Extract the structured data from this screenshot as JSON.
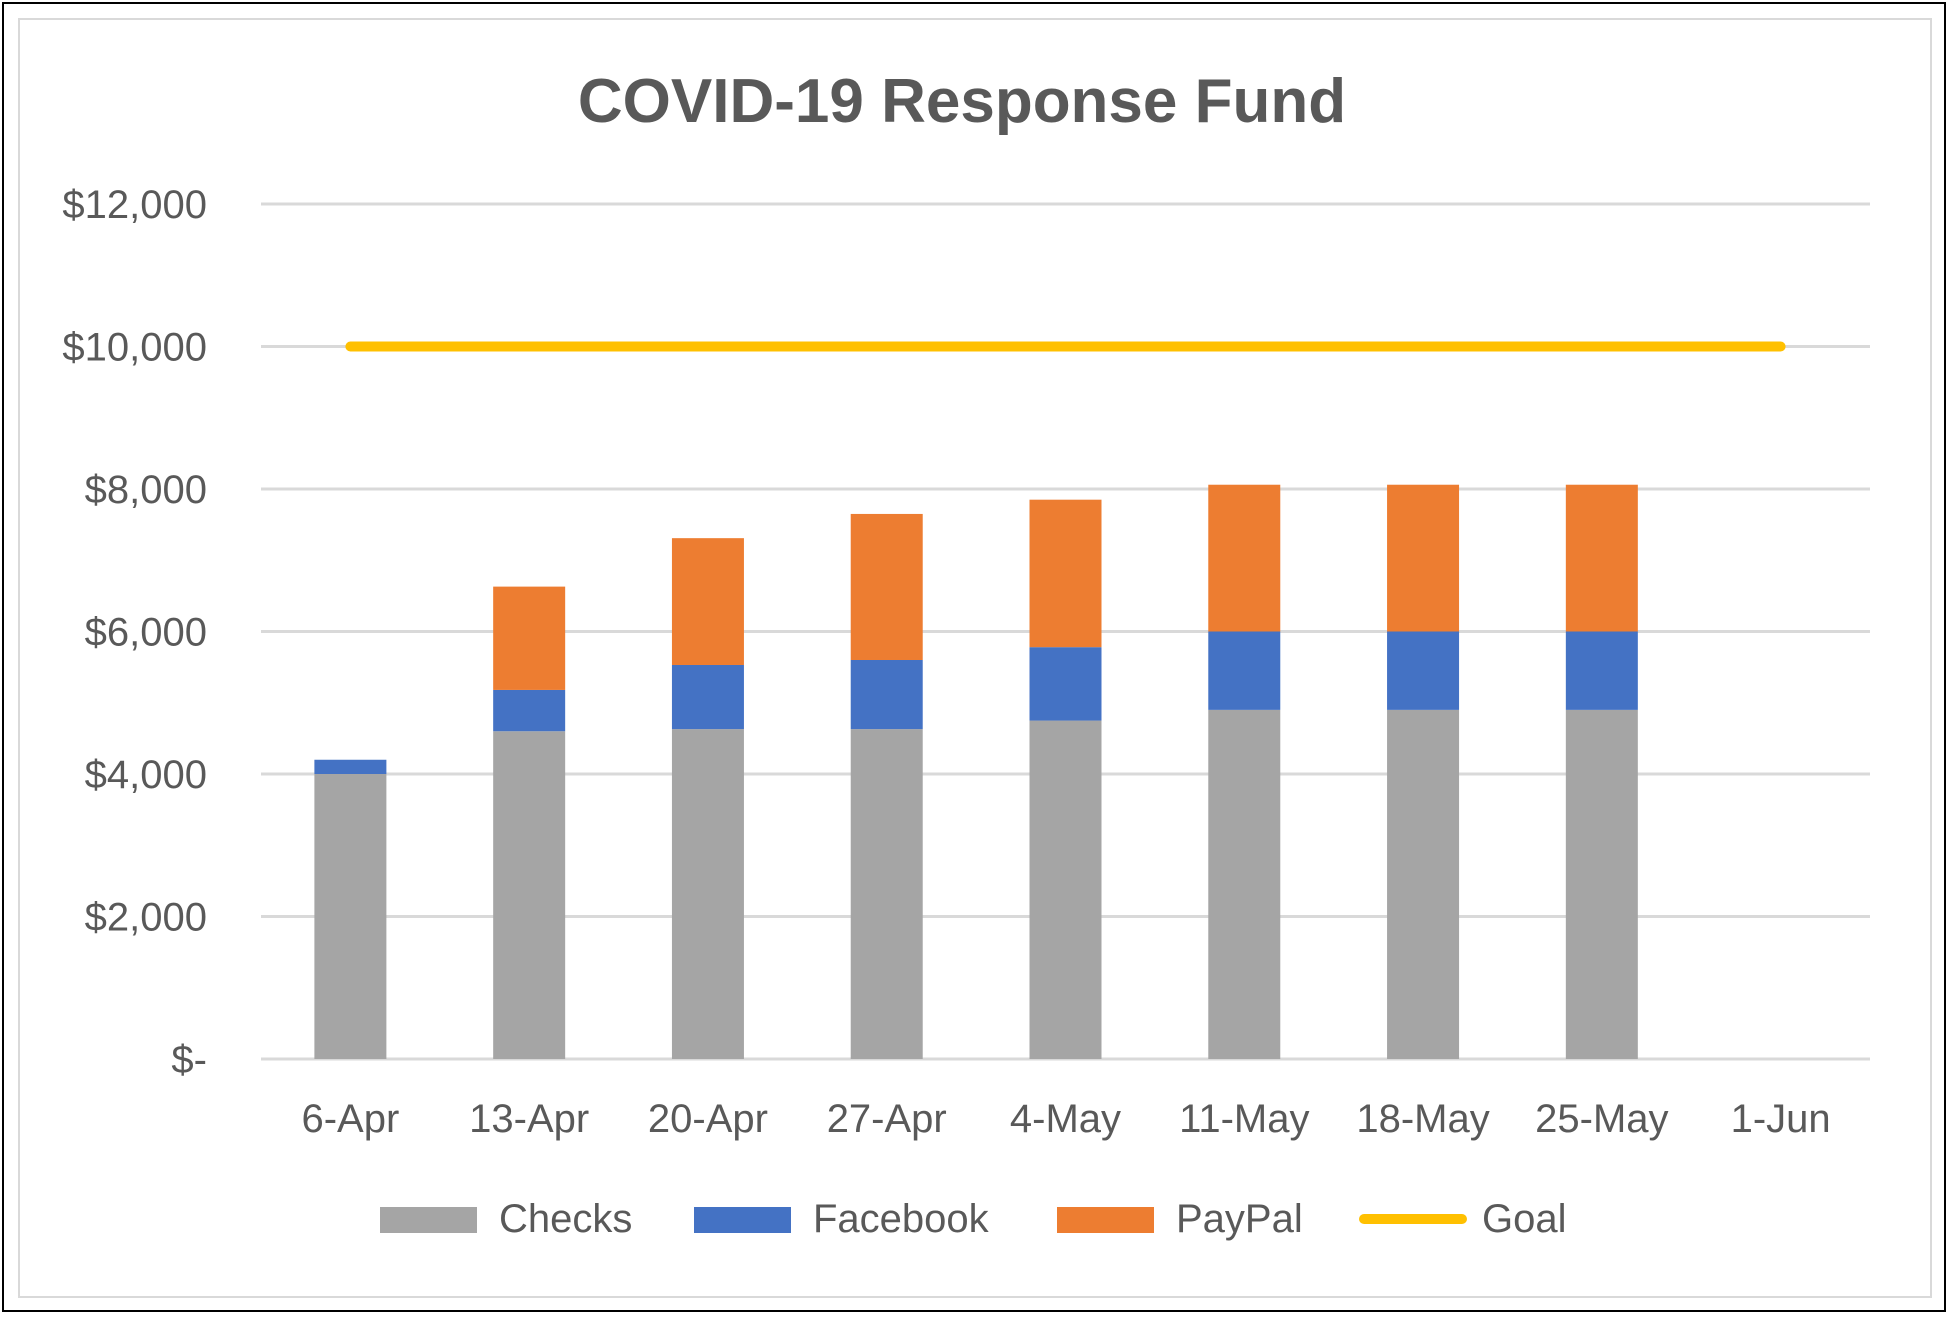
{
  "chart_data": {
    "type": "bar",
    "stacked": true,
    "title": "COVID-19 Response Fund",
    "xlabel": "",
    "ylabel": "",
    "categories": [
      "6-Apr",
      "13-Apr",
      "20-Apr",
      "27-Apr",
      "4-May",
      "11-May",
      "18-May",
      "25-May",
      "1-Jun"
    ],
    "series": [
      {
        "name": "Checks",
        "color": "#a5a5a5",
        "values": [
          4000,
          4600,
          4630,
          4630,
          4750,
          4900,
          4900,
          4900,
          null
        ]
      },
      {
        "name": "Facebook",
        "color": "#4472c4",
        "values": [
          200,
          580,
          900,
          970,
          1030,
          1100,
          1100,
          1100,
          null
        ]
      },
      {
        "name": "PayPal",
        "color": "#ed7d31",
        "values": [
          0,
          1450,
          1780,
          2050,
          2070,
          2060,
          2060,
          2060,
          null
        ]
      }
    ],
    "goal": {
      "name": "Goal",
      "color": "#ffc000",
      "value": 10000
    },
    "yticks": [
      0,
      2000,
      4000,
      6000,
      8000,
      10000,
      12000
    ],
    "ytick_labels": [
      "$-",
      "$2,000",
      "$4,000",
      "$6,000",
      "$8,000",
      "$10,000",
      "$12,000"
    ],
    "ylim": [
      0,
      12000
    ],
    "grid": true,
    "legend_position": "bottom"
  }
}
